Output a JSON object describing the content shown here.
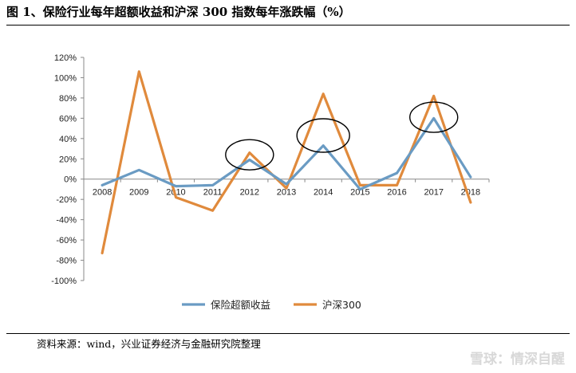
{
  "page": {
    "title": "图 1、保险行业每年超额收益和沪深 300 指数每年涨跌幅（%）",
    "source": "资料来源：wind，兴业证券经济与金融研究院整理",
    "watermark": "雪球：情深自醒"
  },
  "chart_data": {
    "type": "line",
    "title": "图 1、保险行业每年超额收益和沪深 300 指数每年涨跌幅（%）",
    "xlabel": "",
    "ylabel": "",
    "categories": [
      "2008",
      "2009",
      "2010",
      "2011",
      "2012",
      "2013",
      "2014",
      "2015",
      "2016",
      "2017",
      "2018"
    ],
    "ylim": [
      -100,
      120
    ],
    "yticks": [
      -100,
      -80,
      -60,
      -40,
      -20,
      0,
      20,
      40,
      60,
      80,
      100,
      120
    ],
    "ytick_labels": [
      "-100%",
      "-80%",
      "-60%",
      "-40%",
      "-20%",
      "0%",
      "20%",
      "40%",
      "60%",
      "80%",
      "100%",
      "120%"
    ],
    "grid": false,
    "legend_position": "bottom",
    "series": [
      {
        "name": "保险超额收益",
        "color": "#6a9bc3",
        "values": [
          -6,
          9,
          -7,
          -6,
          19,
          -5,
          33,
          -10,
          6,
          60,
          2
        ]
      },
      {
        "name": "沪深300",
        "color": "#e08a3c",
        "values": [
          -73,
          106,
          -18,
          -31,
          26,
          -9,
          84,
          -6,
          -6,
          82,
          -23
        ]
      }
    ],
    "annotations": [
      {
        "type": "ellipse",
        "category": "2012",
        "y_center": 24
      },
      {
        "type": "ellipse",
        "category": "2014",
        "y_center": 43
      },
      {
        "type": "ellipse",
        "category": "2017",
        "y_center": 61
      }
    ]
  }
}
